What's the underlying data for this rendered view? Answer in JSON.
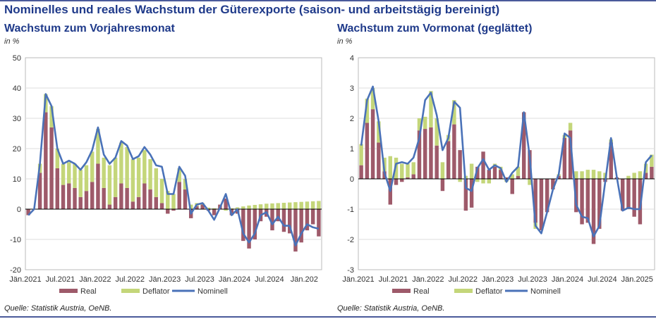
{
  "main_title": "Nominelles und reales Wachstum der Güterexporte (saison- und arbeitstägig bereinigt)",
  "colors": {
    "title": "#1f3a8a",
    "real": "#9e5a6a",
    "deflator": "#c4d67a",
    "nominal": "#4a72b8"
  },
  "panels": [
    {
      "title": "Wachstum zum Vorjahresmonat",
      "unit": "in %",
      "source": "Quelle: Statistik Austria, OeNB."
    },
    {
      "title": "Wachstum zum Vormonat (geglättet)",
      "unit": "in %",
      "source": "Quelle: Statistik Austria, OeNB."
    }
  ],
  "chart_data": [
    {
      "type": "bar",
      "stacked": true,
      "title": "Wachstum zum Vorjahresmonat",
      "ylabel": "in %",
      "ylim": [
        -20,
        50
      ],
      "yticks": [
        -20,
        -10,
        0,
        10,
        20,
        30,
        40,
        50
      ],
      "x_tick_labels": [
        "Jän.2021",
        "Jul.2021",
        "Jän.2022",
        "Jul.2022",
        "Jän.2023",
        "Jul.2023",
        "Jän.2024",
        "Jul.2024",
        "Jän.202"
      ],
      "x_tick_every": 6,
      "grid": true,
      "legend": "bottom",
      "series": [
        {
          "name": "Real",
          "kind": "bar",
          "color": "#9e5a6a",
          "values": [
            -2,
            0,
            12,
            32,
            27,
            13.5,
            8,
            8.5,
            7,
            4,
            6,
            9,
            15,
            7,
            1.5,
            4,
            8.5,
            7,
            2.5,
            4,
            8.5,
            6.5,
            4,
            2,
            -1.5,
            -0.5,
            9,
            6.5,
            -3,
            1,
            1.5,
            -0.5,
            -2,
            1.5,
            3.5,
            -2,
            -1.5,
            -10.5,
            -13,
            -10,
            -4,
            -2.5,
            -7,
            -4,
            -7.5,
            -8,
            -14,
            -11,
            -7,
            -5,
            -9
          ]
        },
        {
          "name": "Deflator",
          "kind": "bar",
          "color": "#c4d67a",
          "values": [
            0,
            0,
            3,
            6,
            7,
            6.5,
            7,
            7,
            8,
            9,
            8.5,
            10,
            11.5,
            10,
            13,
            13,
            13.5,
            13.5,
            14,
            13,
            11,
            10,
            9.5,
            8,
            6,
            5,
            4.5,
            3.5,
            1.5,
            1,
            0.5,
            0.5,
            0.3,
            0,
            -0.5,
            0.3,
            0.6,
            0.9,
            1.2,
            1.4,
            1.6,
            1.8,
            1.9,
            2,
            2.1,
            2.2,
            2.3,
            2.4,
            2.5,
            2.6,
            2.7
          ]
        },
        {
          "name": "Nominell",
          "kind": "line",
          "color": "#4a72b8",
          "values": [
            -2,
            0,
            15,
            38,
            34,
            20,
            15,
            16,
            15,
            13,
            15.5,
            19.5,
            27,
            18,
            15,
            17,
            22.5,
            21,
            16.5,
            17.5,
            20.5,
            18,
            14.5,
            14,
            5,
            5,
            14,
            11,
            -1.5,
            1.5,
            2,
            -0.5,
            -3.5,
            0.5,
            5,
            -2,
            0,
            -8,
            -11,
            -8,
            -2,
            -1,
            -5,
            -2.5,
            -5.5,
            -5.5,
            -12,
            -8,
            -5,
            -6,
            -6.5
          ]
        }
      ]
    },
    {
      "type": "bar",
      "stacked": true,
      "title": "Wachstum zum Vormonat (geglättet)",
      "ylabel": "in %",
      "ylim": [
        -3,
        4
      ],
      "yticks": [
        -3,
        -2,
        -1,
        0,
        1,
        2,
        3,
        4
      ],
      "x_tick_labels": [
        "Jän.2021",
        "Jul.2021",
        "Jän.2022",
        "Jul.2022",
        "Jän.2023",
        "Jul.2023",
        "Jän.2024",
        "Jul.2024",
        "Jän.2025"
      ],
      "x_tick_every": 6,
      "grid": true,
      "legend": "bottom",
      "series": [
        {
          "name": "Real",
          "kind": "bar",
          "color": "#9e5a6a",
          "values": [
            0.45,
            1.85,
            2.3,
            1.2,
            0.25,
            -0.85,
            -0.2,
            -0.1,
            0.05,
            0.15,
            1.6,
            1.65,
            1.7,
            1.1,
            -0.4,
            1.25,
            1.8,
            0.95,
            -1.05,
            -0.95,
            0.4,
            0.9,
            0.3,
            0.4,
            0.3,
            0.05,
            -0.5,
            0.1,
            2.2,
            0.95,
            -1.45,
            -1.7,
            -1.1,
            -0.35,
            0.1,
            1.35,
            1.6,
            -1.1,
            -1.5,
            -1.45,
            -2.15,
            -1.65,
            -0.1,
            1.2,
            0.05,
            -1.05,
            -1.0,
            -1.25,
            -1.5,
            0.2,
            0.4
          ]
        },
        {
          "name": "Deflator",
          "kind": "bar",
          "color": "#c4d67a",
          "values": [
            0.7,
            0.8,
            0.7,
            0.7,
            0.45,
            0.75,
            0.7,
            0.5,
            0.45,
            0.4,
            0.4,
            0.4,
            1.2,
            0.9,
            0.55,
            0.2,
            0.8,
            -0.1,
            0.1,
            0.5,
            -0.1,
            -0.15,
            -0.15,
            0.1,
            0.1,
            -0.1,
            0.15,
            0.3,
            0.0,
            -0.2,
            -0.2,
            0.0,
            0.0,
            0.0,
            0.05,
            0.1,
            0.25,
            0.25,
            0.25,
            0.3,
            0.3,
            0.25,
            0.2,
            0.1,
            0.0,
            0.0,
            0.1,
            0.2,
            0.25,
            0.3,
            0.4
          ]
        },
        {
          "name": "Nominell",
          "kind": "line",
          "color": "#4a72b8",
          "values": [
            1.1,
            2.6,
            3.05,
            1.9,
            0.2,
            -0.4,
            0.5,
            0.55,
            0.5,
            0.7,
            1.35,
            2.6,
            2.85,
            2.1,
            0.95,
            1.35,
            2.55,
            2.35,
            -0.3,
            -0.4,
            0.35,
            0.65,
            0.3,
            0.45,
            0.35,
            -0.1,
            0.2,
            0.4,
            2.2,
            0.75,
            -1.55,
            -1.8,
            -1.1,
            -0.35,
            0.15,
            1.5,
            1.35,
            -0.85,
            -1.25,
            -1.3,
            -1.9,
            -1.55,
            -0.1,
            1.35,
            0.05,
            -1.05,
            -0.95,
            -1.0,
            -1.0,
            0.55,
            0.78
          ]
        }
      ]
    }
  ]
}
